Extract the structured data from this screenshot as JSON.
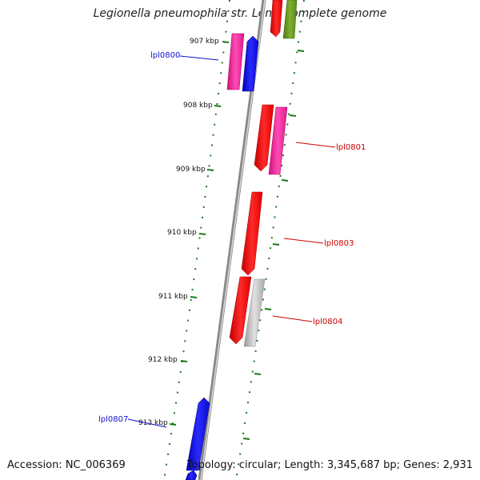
{
  "title": "Legionella pneumophila str. Lens, complete genome",
  "footer": {
    "accession": "Accession: NC_006369",
    "summary": "Topology: circular; Length: 3,345,687 bp; Genes: 2,931"
  },
  "colors": {
    "backbone": "#888888",
    "tick": "#1a7a1a",
    "red": "#ff1a1a",
    "magenta": "#ff2aa0",
    "blue": "#1111ee",
    "olive": "#6a9a20",
    "gray": "#bdbdbd",
    "label_blue": "#1111cc",
    "label_red": "#cc0000"
  },
  "ticks": [
    {
      "label": "907 kbp"
    },
    {
      "label": "908 kbp"
    },
    {
      "label": "909 kbp"
    },
    {
      "label": "910 kbp"
    },
    {
      "label": "911 kbp"
    },
    {
      "label": "912 kbp"
    },
    {
      "label": "913 kbp"
    }
  ],
  "gene_labels": [
    {
      "name": "lpl0800",
      "color": "blue"
    },
    {
      "name": "lpl0801",
      "color": "red"
    },
    {
      "name": "lpl0803",
      "color": "red"
    },
    {
      "name": "lpl0804",
      "color": "red"
    },
    {
      "name": "lpl0807",
      "color": "blue"
    }
  ]
}
